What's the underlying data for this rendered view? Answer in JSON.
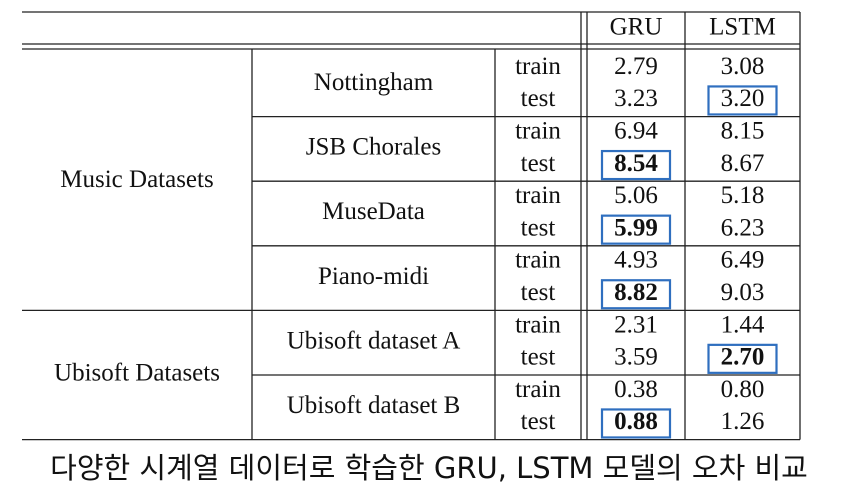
{
  "table": {
    "header": [
      "GRU",
      "LSTM"
    ],
    "groups": [
      {
        "name": "Music Datasets",
        "datasets": [
          {
            "name": "Nottingham",
            "rows": [
              {
                "split": "train",
                "cells": [
                  {
                    "text": "2.79"
                  },
                  {
                    "text": "3.08"
                  }
                ]
              },
              {
                "split": "test",
                "cells": [
                  {
                    "text": "3.23"
                  },
                  {
                    "text": "3.20",
                    "highlight": true
                  }
                ]
              }
            ]
          },
          {
            "name": "JSB Chorales",
            "rows": [
              {
                "split": "train",
                "cells": [
                  {
                    "text": "6.94"
                  },
                  {
                    "text": "8.15"
                  }
                ]
              },
              {
                "split": "test",
                "cells": [
                  {
                    "text": "8.54",
                    "highlight": true,
                    "bold": true
                  },
                  {
                    "text": "8.67"
                  }
                ]
              }
            ]
          },
          {
            "name": "MuseData",
            "rows": [
              {
                "split": "train",
                "cells": [
                  {
                    "text": "5.06"
                  },
                  {
                    "text": "5.18"
                  }
                ]
              },
              {
                "split": "test",
                "cells": [
                  {
                    "text": "5.99",
                    "highlight": true,
                    "bold": true
                  },
                  {
                    "text": "6.23"
                  }
                ]
              }
            ]
          },
          {
            "name": "Piano-midi",
            "rows": [
              {
                "split": "train",
                "cells": [
                  {
                    "text": "4.93"
                  },
                  {
                    "text": "6.49"
                  }
                ]
              },
              {
                "split": "test",
                "cells": [
                  {
                    "text": "8.82",
                    "highlight": true,
                    "bold": true
                  },
                  {
                    "text": "9.03"
                  }
                ]
              }
            ]
          }
        ]
      },
      {
        "name": "Ubisoft Datasets",
        "datasets": [
          {
            "name": "Ubisoft dataset A",
            "rows": [
              {
                "split": "train",
                "cells": [
                  {
                    "text": "2.31"
                  },
                  {
                    "text": "1.44"
                  }
                ]
              },
              {
                "split": "test",
                "cells": [
                  {
                    "text": "3.59"
                  },
                  {
                    "text": "2.70",
                    "highlight": true,
                    "bold": true
                  }
                ]
              }
            ]
          },
          {
            "name": "Ubisoft dataset B",
            "rows": [
              {
                "split": "train",
                "cells": [
                  {
                    "text": "0.38"
                  },
                  {
                    "text": "0.80"
                  }
                ]
              },
              {
                "split": "test",
                "cells": [
                  {
                    "text": "0.88",
                    "highlight": true,
                    "bold": true
                  },
                  {
                    "text": "1.26"
                  }
                ]
              }
            ]
          }
        ]
      }
    ]
  },
  "caption": "다양한 시계열 데이터로 학습한 GRU, LSTM 모델의 오차 비교"
}
